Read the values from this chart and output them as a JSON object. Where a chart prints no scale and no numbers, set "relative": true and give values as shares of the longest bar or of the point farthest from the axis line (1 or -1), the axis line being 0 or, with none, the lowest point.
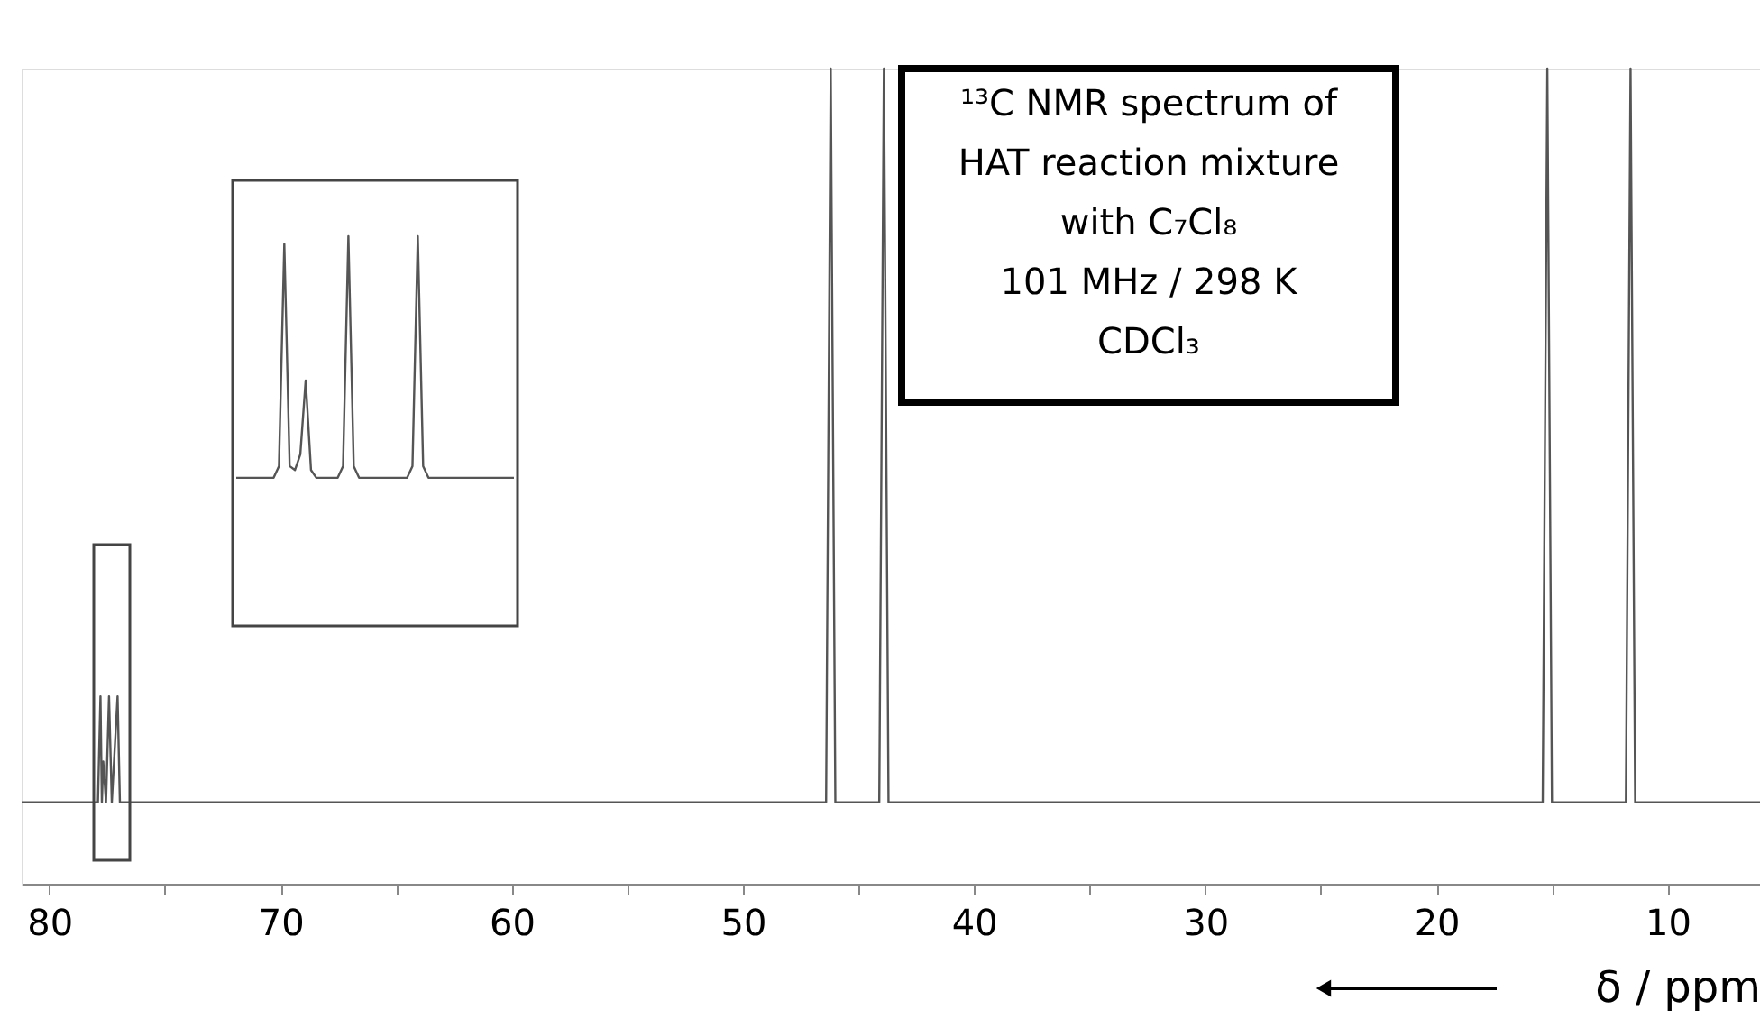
{
  "chart_data": [
    {
      "type": "line",
      "relative": true,
      "xlabel": "δ / ppm",
      "xlim": [
        81.2,
        6
      ],
      "xticks": [
        80,
        {
          "value": 75,
          "label": null
        },
        70,
        {
          "value": 65,
          "label": null
        },
        60,
        {
          "value": 55,
          "label": null
        },
        50,
        {
          "value": 45,
          "label": null
        },
        40,
        {
          "value": 35,
          "label": null
        },
        30,
        {
          "value": 25,
          "label": null
        },
        20,
        {
          "value": 15,
          "label": null
        },
        10
      ],
      "tick_labels": "x",
      "grid": false,
      "legend": false,
      "marker": "none",
      "line_style": "solid",
      "annotations": [
        "¹³C NMR spectrum of\nHAT reaction mixture\nwith C₇Cl₈\n101 MHz / 298 K\nCDCl₃"
      ],
      "series": [
        {
          "color": "#555555",
          "x": [
            81.2,
            77.9,
            77.79,
            77.73,
            77.67,
            77.55,
            77.42,
            77.3,
            77.05,
            76.95,
            46.4,
            46.2,
            46.0,
            44.1,
            43.9,
            43.7,
            15.4,
            15.2,
            15.0,
            11.8,
            11.6,
            11.4,
            6
          ],
          "values": [
            0.1,
            0.1,
            0.23,
            0.1,
            0.15,
            0.1,
            0.23,
            0.1,
            0.23,
            0.1,
            0.1,
            1,
            0.1,
            0.1,
            1,
            0.1,
            0.1,
            1,
            0.1,
            0.1,
            1,
            0.1,
            0.1
          ]
        }
      ]
    },
    {
      "type": "line",
      "relative": true,
      "tick_labels": false,
      "grid": false,
      "legend": false,
      "marker": "none",
      "line_style": "solid",
      "categories": [
        null,
        null,
        null,
        null,
        null,
        null,
        null,
        null,
        null,
        null,
        null,
        null,
        null,
        null,
        null,
        null,
        null,
        null,
        null,
        null,
        null,
        null,
        null,
        null,
        null,
        null,
        null,
        null,
        null,
        null,
        null,
        null,
        null,
        null,
        null,
        null,
        null,
        null,
        null,
        null,
        null,
        null,
        null,
        null,
        null,
        null,
        null,
        null,
        null,
        null,
        null,
        null,
        null
      ],
      "series": [
        {
          "color": "#555555",
          "values": [
            0.38,
            0.38,
            0.38,
            0.38,
            0.38,
            0.38,
            0.38,
            0.38,
            0.41,
            0.98,
            0.41,
            0.4,
            0.44,
            0.63,
            0.4,
            0.38,
            0.38,
            0.38,
            0.38,
            0.38,
            0.41,
            1,
            0.41,
            0.38,
            0.38,
            0.38,
            0.38,
            0.38,
            0.38,
            0.38,
            0.38,
            0.38,
            0.38,
            0.41,
            1,
            0.41,
            0.38,
            0.38,
            0.38,
            0.38,
            0.38,
            0.38,
            0.38,
            0.38,
            0.38,
            0.38,
            0.38,
            0.38,
            0.38,
            0.38,
            0.38,
            0.38,
            0.38
          ]
        }
      ]
    }
  ]
}
